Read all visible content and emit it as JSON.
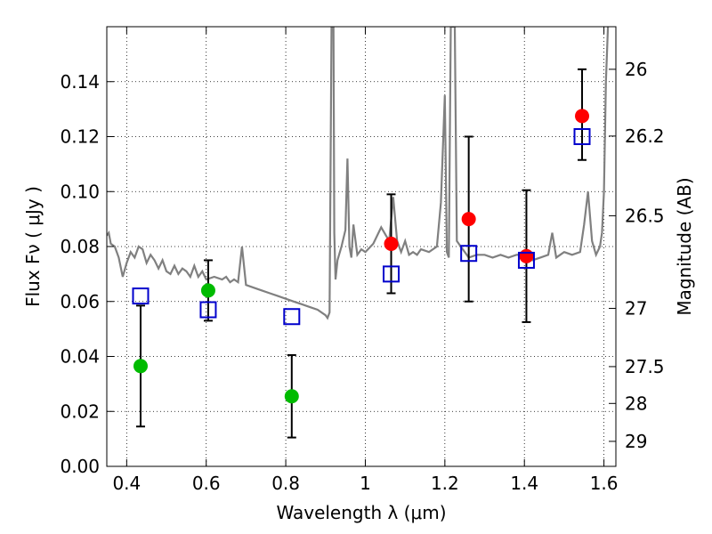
{
  "chart_data": {
    "type": "scatter",
    "xlabel": "Wavelength  λ (μm)",
    "ylabel": "Flux  Fν  ( μJy )",
    "y2label": "Magnitude (AB)",
    "xlim": [
      0.35,
      1.63
    ],
    "ylim": [
      0.0,
      0.16
    ],
    "x_ticks": [
      0.4,
      0.6,
      0.8,
      1.0,
      1.2,
      1.4,
      1.6
    ],
    "x_tick_labels": [
      "0.4",
      "0.6",
      "0.8",
      "1",
      "1.2",
      "1.4",
      "1.6"
    ],
    "y_ticks": [
      0.0,
      0.02,
      0.04,
      0.06,
      0.08,
      0.1,
      0.12,
      0.14
    ],
    "y_tick_labels": [
      "0.00",
      "0.02",
      "0.04",
      "0.06",
      "0.08",
      "0.10",
      "0.12",
      "0.14"
    ],
    "y2_ticks": [
      {
        "label": "26",
        "flux": 0.1445
      },
      {
        "label": "26.2",
        "flux": 0.1202
      },
      {
        "label": "26.5",
        "flux": 0.0912
      },
      {
        "label": "27",
        "flux": 0.0575
      },
      {
        "label": "27.5",
        "flux": 0.0363
      },
      {
        "label": "28",
        "flux": 0.0229
      },
      {
        "label": "29",
        "flux": 0.0091
      }
    ],
    "grid": true,
    "series": [
      {
        "marker": "circle",
        "color": "#00bb00",
        "points": [
          {
            "x": 0.435,
            "y": 0.0365,
            "ylo": 0.0145,
            "yhi": 0.0585
          },
          {
            "x": 0.605,
            "y": 0.064,
            "ylo": 0.053,
            "yhi": 0.075
          },
          {
            "x": 0.815,
            "y": 0.0255,
            "ylo": 0.0105,
            "yhi": 0.0405
          }
        ]
      },
      {
        "marker": "circle",
        "color": "#ff0000",
        "points": [
          {
            "x": 1.065,
            "y": 0.081,
            "ylo": 0.063,
            "yhi": 0.099
          },
          {
            "x": 1.26,
            "y": 0.09,
            "ylo": 0.06,
            "yhi": 0.12
          },
          {
            "x": 1.405,
            "y": 0.0765,
            "ylo": 0.0525,
            "yhi": 0.1005
          },
          {
            "x": 1.545,
            "y": 0.1275,
            "ylo": 0.1115,
            "yhi": 0.1445
          }
        ]
      },
      {
        "marker": "open-square",
        "color": "#0000cc",
        "points": [
          {
            "x": 0.435,
            "y": 0.062
          },
          {
            "x": 0.605,
            "y": 0.057
          },
          {
            "x": 0.815,
            "y": 0.0545
          },
          {
            "x": 1.065,
            "y": 0.07
          },
          {
            "x": 1.26,
            "y": 0.0775
          },
          {
            "x": 1.405,
            "y": 0.075
          },
          {
            "x": 1.545,
            "y": 0.12
          }
        ]
      },
      {
        "type": "line",
        "color": "#808080",
        "x": [
          0.35,
          0.355,
          0.36,
          0.37,
          0.375,
          0.38,
          0.39,
          0.4,
          0.41,
          0.42,
          0.43,
          0.44,
          0.45,
          0.46,
          0.47,
          0.48,
          0.49,
          0.5,
          0.51,
          0.52,
          0.53,
          0.54,
          0.55,
          0.56,
          0.57,
          0.58,
          0.59,
          0.6,
          0.62,
          0.64,
          0.65,
          0.66,
          0.67,
          0.68,
          0.69,
          0.7,
          0.72,
          0.74,
          0.76,
          0.78,
          0.8,
          0.82,
          0.84,
          0.86,
          0.88,
          0.9,
          0.905,
          0.91,
          0.915,
          0.918,
          0.92,
          0.922,
          0.925,
          0.93,
          0.94,
          0.95,
          0.955,
          0.96,
          0.965,
          0.97,
          0.98,
          0.99,
          1.0,
          1.02,
          1.04,
          1.06,
          1.07,
          1.08,
          1.09,
          1.1,
          1.11,
          1.12,
          1.13,
          1.14,
          1.16,
          1.18,
          1.19,
          1.2,
          1.205,
          1.21,
          1.215,
          1.22,
          1.225,
          1.23,
          1.24,
          1.26,
          1.28,
          1.3,
          1.32,
          1.34,
          1.36,
          1.38,
          1.4,
          1.42,
          1.44,
          1.46,
          1.47,
          1.48,
          1.49,
          1.5,
          1.52,
          1.54,
          1.55,
          1.56,
          1.57,
          1.58,
          1.59,
          1.595,
          1.6,
          1.605,
          1.61
        ],
        "y": [
          0.084,
          0.085,
          0.081,
          0.08,
          0.078,
          0.076,
          0.069,
          0.074,
          0.078,
          0.076,
          0.08,
          0.079,
          0.074,
          0.077,
          0.075,
          0.072,
          0.075,
          0.071,
          0.07,
          0.073,
          0.07,
          0.072,
          0.071,
          0.069,
          0.073,
          0.069,
          0.071,
          0.068,
          0.069,
          0.068,
          0.069,
          0.067,
          0.068,
          0.067,
          0.08,
          0.066,
          0.065,
          0.064,
          0.063,
          0.062,
          0.061,
          0.06,
          0.059,
          0.058,
          0.057,
          0.055,
          0.054,
          0.056,
          0.16,
          0.16,
          0.16,
          0.085,
          0.068,
          0.075,
          0.08,
          0.086,
          0.112,
          0.08,
          0.076,
          0.088,
          0.077,
          0.079,
          0.078,
          0.081,
          0.087,
          0.082,
          0.098,
          0.082,
          0.078,
          0.082,
          0.077,
          0.078,
          0.077,
          0.079,
          0.078,
          0.08,
          0.096,
          0.135,
          0.078,
          0.076,
          0.16,
          0.16,
          0.16,
          0.082,
          0.08,
          0.076,
          0.077,
          0.077,
          0.076,
          0.077,
          0.076,
          0.077,
          0.077,
          0.075,
          0.076,
          0.077,
          0.085,
          0.076,
          0.077,
          0.078,
          0.077,
          0.078,
          0.088,
          0.1,
          0.082,
          0.077,
          0.08,
          0.085,
          0.1,
          0.14,
          0.16
        ]
      }
    ]
  }
}
